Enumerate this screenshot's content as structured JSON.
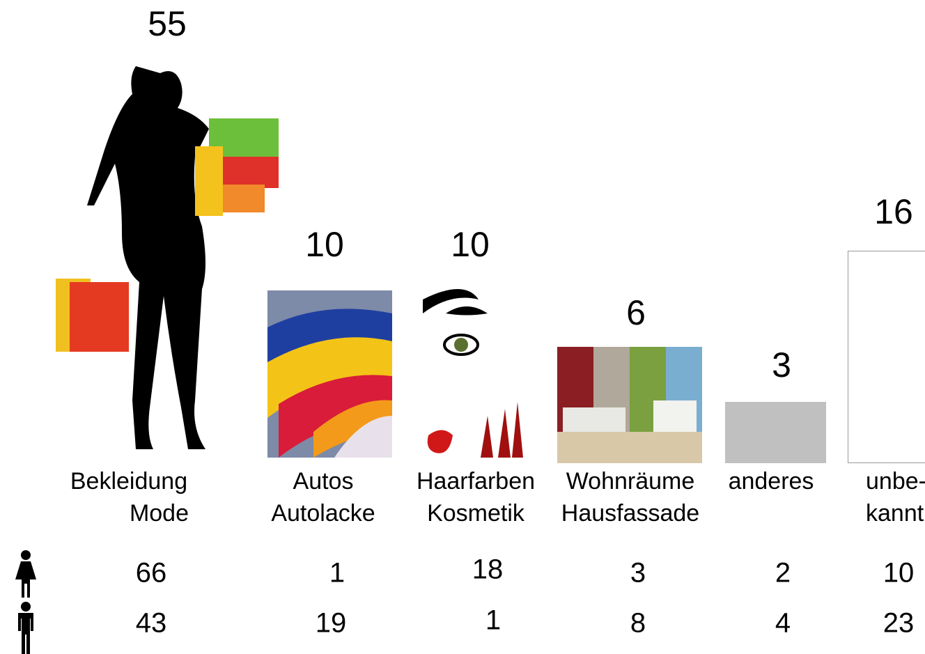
{
  "items": [
    {
      "label": [
        "Bekleidung",
        "Mode"
      ],
      "total": 55,
      "female": 66,
      "male": 43
    },
    {
      "label": [
        "Autos",
        "Autolacke"
      ],
      "total": 10,
      "female": 1,
      "male": 19
    },
    {
      "label": [
        "Haarfarben",
        "Kosmetik"
      ],
      "total": 10,
      "female": 18,
      "male": 1
    },
    {
      "label": [
        "Wohnräume",
        "Hausfassade"
      ],
      "total": 6,
      "female": 3,
      "male": 8
    },
    {
      "label": [
        "anderes"
      ],
      "total": 3,
      "female": 2,
      "male": 4
    },
    {
      "label": [
        "unbe-",
        "kannt"
      ],
      "total": 16,
      "female": 10,
      "male": 23
    }
  ]
}
